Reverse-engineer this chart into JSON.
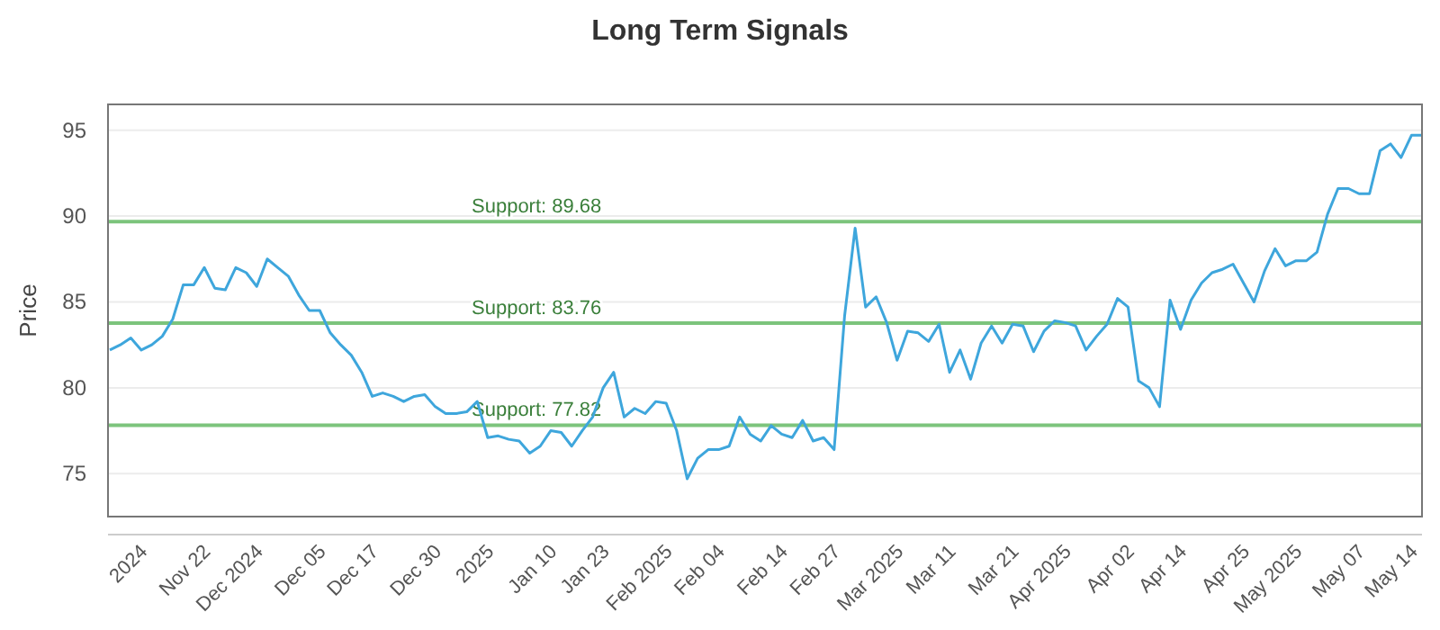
{
  "chart_data": {
    "type": "line",
    "title": "Long Term Signals",
    "ylabel": "Price",
    "categories": [
      null,
      null,
      null,
      "2024",
      null,
      null,
      null,
      null,
      null,
      "Nov 22",
      null,
      null,
      null,
      null,
      "Dec 2024",
      null,
      null,
      null,
      null,
      null,
      "Dec 05",
      null,
      null,
      null,
      null,
      "Dec 17",
      null,
      null,
      null,
      null,
      null,
      "Dec 30",
      null,
      null,
      null,
      null,
      "2025",
      null,
      null,
      null,
      null,
      null,
      "Jan 10",
      null,
      null,
      null,
      null,
      "Jan 23",
      null,
      null,
      null,
      null,
      null,
      "Feb 2025",
      null,
      null,
      null,
      null,
      "Feb 04",
      null,
      null,
      null,
      null,
      null,
      "Feb 14",
      null,
      null,
      null,
      null,
      "Feb 27",
      null,
      null,
      null,
      null,
      null,
      "Mar 2025",
      null,
      null,
      null,
      null,
      "Mar 11",
      null,
      null,
      null,
      null,
      null,
      "Mar 21",
      null,
      null,
      null,
      null,
      "Apr 2025",
      null,
      null,
      null,
      null,
      null,
      "Apr 02",
      null,
      null,
      null,
      null,
      "Apr 14",
      null,
      null,
      null,
      null,
      null,
      "Apr 25",
      null,
      null,
      null,
      null,
      "May 2025",
      null,
      null,
      null,
      null,
      null,
      "May 07",
      null,
      null,
      null,
      null,
      "May 14",
      null
    ],
    "series": [
      {
        "color": "#3ea6dc",
        "values": [
          82.2,
          82.5,
          82.9,
          82.2,
          82.5,
          83.0,
          84.0,
          86.0,
          86.0,
          87.0,
          85.8,
          85.7,
          87.0,
          86.7,
          85.9,
          87.5,
          87.0,
          86.5,
          85.4,
          84.5,
          84.5,
          83.2,
          82.5,
          81.9,
          80.9,
          79.5,
          79.7,
          79.5,
          79.2,
          79.5,
          79.6,
          78.9,
          78.5,
          78.5,
          78.6,
          79.2,
          77.1,
          77.2,
          77.0,
          76.9,
          76.2,
          76.6,
          77.5,
          77.4,
          76.6,
          77.5,
          78.3,
          80.0,
          80.9,
          78.3,
          78.8,
          78.5,
          79.2,
          79.1,
          77.5,
          74.7,
          75.9,
          76.4,
          76.4,
          76.6,
          78.3,
          77.3,
          76.9,
          77.8,
          77.3,
          77.1,
          78.1,
          76.9,
          77.1,
          76.4,
          84.2,
          89.3,
          84.7,
          85.3,
          83.8,
          81.6,
          83.3,
          83.2,
          82.7,
          83.7,
          80.9,
          82.2,
          80.5,
          82.6,
          83.6,
          82.6,
          83.7,
          83.6,
          82.1,
          83.3,
          83.9,
          83.8,
          83.6,
          82.2,
          83.0,
          83.7,
          85.2,
          84.7,
          80.4,
          80.0,
          78.9,
          85.1,
          83.4,
          85.1,
          86.1,
          86.7,
          86.9,
          87.2,
          86.1,
          85.0,
          86.8,
          88.1,
          87.1,
          87.4,
          87.4,
          87.9,
          90.1,
          91.6,
          91.6,
          91.3,
          91.3,
          93.8,
          94.2,
          93.4,
          94.7,
          94.7
        ]
      }
    ],
    "ylim": [
      72.5,
      96.5
    ],
    "yticks": [
      75,
      80,
      85,
      90,
      95
    ],
    "grid": "y",
    "marker": "none",
    "line_style": "solid",
    "ref_lines": [
      {
        "axis": "y",
        "value": 89.68,
        "label": "Support: 89.68",
        "color": "#7cc47c"
      },
      {
        "axis": "y",
        "value": 83.76,
        "label": "Support: 83.76",
        "color": "#7cc47c"
      },
      {
        "axis": "y",
        "value": 77.82,
        "label": "Support: 77.82",
        "color": "#7cc47c"
      }
    ]
  }
}
